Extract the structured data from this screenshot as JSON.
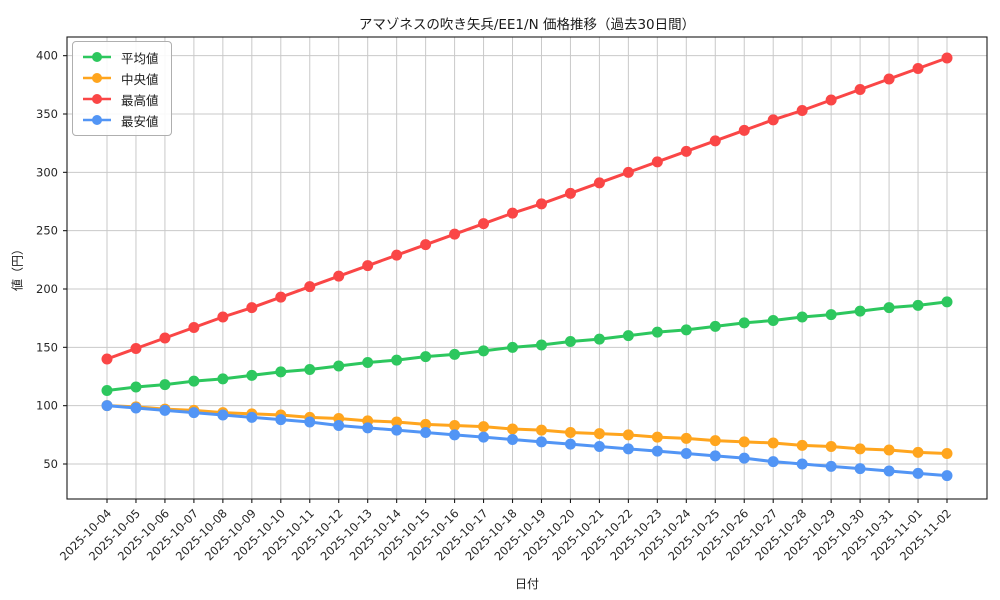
{
  "chart_data": {
    "type": "line",
    "title": "アマゾネスの吹き矢兵/EE1/N 価格推移（過去30日間）",
    "xlabel": "日付",
    "ylabel": "値（円）",
    "x": [
      "2025-10-04",
      "2025-10-05",
      "2025-10-06",
      "2025-10-07",
      "2025-10-08",
      "2025-10-09",
      "2025-10-10",
      "2025-10-11",
      "2025-10-12",
      "2025-10-13",
      "2025-10-14",
      "2025-10-15",
      "2025-10-16",
      "2025-10-17",
      "2025-10-18",
      "2025-10-19",
      "2025-10-20",
      "2025-10-21",
      "2025-10-22",
      "2025-10-23",
      "2025-10-24",
      "2025-10-25",
      "2025-10-26",
      "2025-10-27",
      "2025-10-28",
      "2025-10-29",
      "2025-10-30",
      "2025-10-31",
      "2025-11-01",
      "2025-11-02"
    ],
    "series": [
      {
        "name": "平均値",
        "color": "#2dc75e",
        "values": [
          113,
          116,
          118,
          121,
          123,
          126,
          129,
          131,
          134,
          137,
          139,
          142,
          144,
          147,
          150,
          152,
          155,
          157,
          160,
          163,
          165,
          168,
          171,
          173,
          176,
          178,
          181,
          184,
          186,
          189
        ]
      },
      {
        "name": "中央値",
        "color": "#ffa51e",
        "values": [
          100,
          99,
          97,
          96,
          94,
          93,
          92,
          90,
          89,
          87,
          86,
          84,
          83,
          82,
          80,
          79,
          77,
          76,
          75,
          73,
          72,
          70,
          69,
          68,
          66,
          65,
          63,
          62,
          60,
          59
        ]
      },
      {
        "name": "最高値",
        "color": "#fa4646",
        "values": [
          140,
          149,
          158,
          167,
          176,
          184,
          193,
          202,
          211,
          220,
          229,
          238,
          247,
          256,
          265,
          273,
          282,
          291,
          300,
          309,
          318,
          327,
          336,
          345,
          353,
          362,
          371,
          380,
          389,
          398
        ]
      },
      {
        "name": "最安値",
        "color": "#5295f5",
        "values": [
          100,
          98,
          96,
          94,
          92,
          90,
          88,
          86,
          83,
          81,
          79,
          77,
          75,
          73,
          71,
          69,
          67,
          65,
          63,
          61,
          59,
          57,
          55,
          52,
          50,
          48,
          46,
          44,
          42,
          40
        ]
      }
    ],
    "yticks": [
      50,
      100,
      150,
      200,
      250,
      300,
      350,
      400
    ],
    "ylim": [
      20,
      416
    ],
    "grid": true,
    "legend_position": "upper-left",
    "x_tick_rotation": 45,
    "colors": {
      "grid": "#c9c9c9",
      "spine": "#1a1a1a",
      "tick_text": "#262626",
      "background": "#ffffff"
    }
  }
}
